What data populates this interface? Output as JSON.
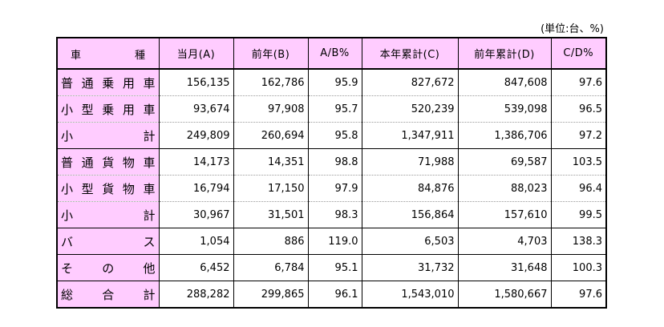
{
  "unit_note": "(単位:台、%)",
  "header": {
    "corner_left": "車",
    "corner_right": "種",
    "columns": [
      "当月(A)",
      "前年(B)",
      "A/B%",
      "本年累計(C)",
      "前年累計(D)",
      "C/D%"
    ]
  },
  "rows": [
    {
      "label": [
        "普",
        "通",
        "乗",
        "用",
        "車"
      ],
      "cells": [
        "156,135",
        "162,786",
        "95.9",
        "827,672",
        "847,608",
        "97.6"
      ]
    },
    {
      "label": [
        "小",
        "型",
        "乗",
        "用",
        "車"
      ],
      "cells": [
        "93,674",
        "97,908",
        "95.7",
        "520,239",
        "539,098",
        "96.5"
      ]
    },
    {
      "label": [
        "小",
        "計"
      ],
      "cells": [
        "249,809",
        "260,694",
        "95.8",
        "1,347,911",
        "1,386,706",
        "97.2"
      ]
    },
    {
      "label": [
        "普",
        "通",
        "貨",
        "物",
        "車"
      ],
      "cells": [
        "14,173",
        "14,351",
        "98.8",
        "71,988",
        "69,587",
        "103.5"
      ]
    },
    {
      "label": [
        "小",
        "型",
        "貨",
        "物",
        "車"
      ],
      "cells": [
        "16,794",
        "17,150",
        "97.9",
        "84,876",
        "88,023",
        "96.4"
      ]
    },
    {
      "label": [
        "小",
        "計"
      ],
      "cells": [
        "30,967",
        "31,501",
        "98.3",
        "156,864",
        "157,610",
        "99.5"
      ]
    },
    {
      "label": [
        "バ",
        "ス"
      ],
      "cells": [
        "1,054",
        "886",
        "119.0",
        "6,503",
        "4,703",
        "138.3"
      ]
    },
    {
      "label": [
        "そ",
        "の",
        "他"
      ],
      "cells": [
        "6,452",
        "6,784",
        "95.1",
        "31,732",
        "31,648",
        "100.3"
      ]
    },
    {
      "label": [
        "総",
        "合",
        "計"
      ],
      "cells": [
        "288,282",
        "299,865",
        "96.1",
        "1,543,010",
        "1,580,667",
        "97.6"
      ]
    }
  ]
}
